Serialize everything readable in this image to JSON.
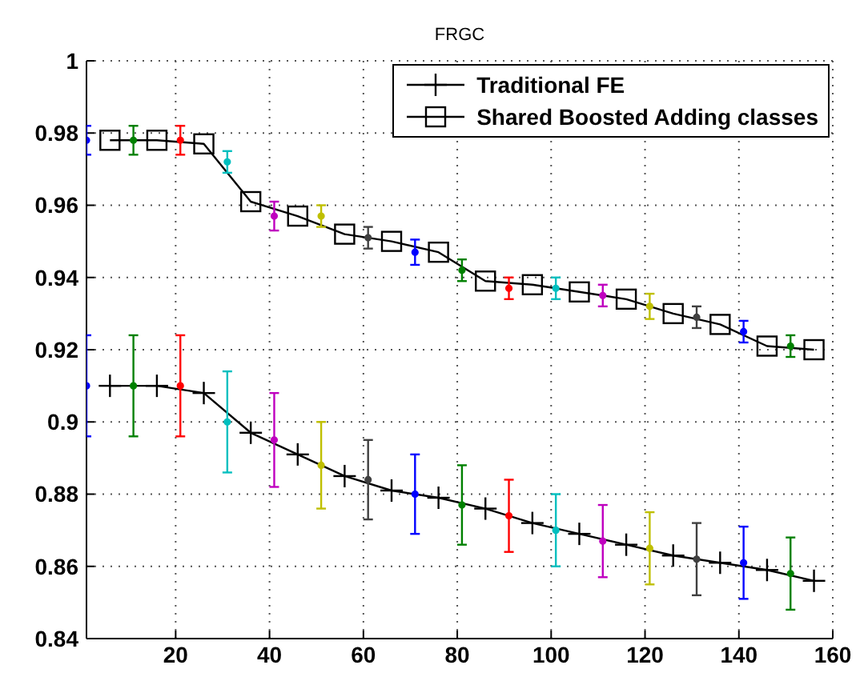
{
  "chart_data": {
    "type": "line",
    "title": "FRGC",
    "xlim": [
      1,
      160
    ],
    "xticks": [
      20,
      40,
      60,
      80,
      100,
      120,
      140,
      160
    ],
    "ylim": [
      0.84,
      1
    ],
    "yticks": [
      0.84,
      0.86,
      0.88,
      0.9,
      0.92,
      0.94,
      0.96,
      0.98,
      1
    ],
    "grid": true,
    "legend": "top right",
    "line_style": "solid",
    "series": [
      {
        "name": "Traditional FE",
        "color": "#000000",
        "marker": "cross",
        "x": [
          6,
          16,
          26,
          36,
          46,
          56,
          66,
          76,
          86,
          96,
          106,
          116,
          126,
          136,
          146,
          156
        ],
        "values": [
          0.91,
          0.91,
          0.908,
          0.897,
          0.891,
          0.885,
          0.881,
          0.879,
          0.876,
          0.872,
          0.869,
          0.866,
          0.863,
          0.861,
          0.859,
          0.856
        ]
      },
      {
        "name": "Shared Boosted Adding classes",
        "color": "#000000",
        "marker": "square",
        "x": [
          6,
          16,
          26,
          36,
          46,
          56,
          66,
          76,
          86,
          96,
          106,
          116,
          126,
          136,
          146,
          156
        ],
        "values": [
          0.978,
          0.978,
          0.977,
          0.961,
          0.957,
          0.952,
          0.95,
          0.947,
          0.939,
          0.938,
          0.936,
          0.934,
          0.93,
          0.927,
          0.921,
          0.92
        ]
      },
      {
        "type": "scatter",
        "marker": "circle",
        "x": [
          1,
          11,
          21,
          31,
          41,
          51,
          61,
          71,
          81,
          91,
          101,
          111,
          121,
          131,
          141,
          151
        ],
        "values": [
          0.91,
          0.91,
          0.91,
          0.9,
          0.895,
          0.888,
          0.884,
          0.88,
          0.877,
          0.874,
          0.87,
          0.867,
          0.865,
          0.862,
          0.861,
          0.858
        ],
        "errors": [
          0.014,
          0.014,
          0.014,
          0.014,
          0.013,
          0.012,
          0.011,
          0.011,
          0.011,
          0.01,
          0.01,
          0.01,
          0.01,
          0.01,
          0.01,
          0.01
        ],
        "colors": [
          "#0000ff",
          "#008000",
          "#ff0000",
          "#00bfbf",
          "#bf00bf",
          "#bfbf00",
          "#404040",
          "#0000ff",
          "#008000",
          "#ff0000",
          "#00bfbf",
          "#bf00bf",
          "#bfbf00",
          "#404040",
          "#0000ff",
          "#008000"
        ]
      },
      {
        "type": "scatter",
        "marker": "circle",
        "x": [
          1,
          11,
          21,
          31,
          41,
          51,
          61,
          71,
          81,
          91,
          101,
          111,
          121,
          131,
          141,
          151
        ],
        "values": [
          0.978,
          0.978,
          0.978,
          0.972,
          0.957,
          0.957,
          0.951,
          0.947,
          0.942,
          0.937,
          0.937,
          0.935,
          0.932,
          0.929,
          0.925,
          0.921
        ],
        "errors": [
          0.004,
          0.004,
          0.004,
          0.003,
          0.004,
          0.003,
          0.003,
          0.0035,
          0.003,
          0.003,
          0.003,
          0.003,
          0.0035,
          0.003,
          0.003,
          0.003
        ],
        "colors": [
          "#0000ff",
          "#008000",
          "#ff0000",
          "#00bfbf",
          "#bf00bf",
          "#bfbf00",
          "#404040",
          "#0000ff",
          "#008000",
          "#ff0000",
          "#00bfbf",
          "#bf00bf",
          "#bfbf00",
          "#404040",
          "#0000ff",
          "#008000"
        ]
      }
    ]
  }
}
